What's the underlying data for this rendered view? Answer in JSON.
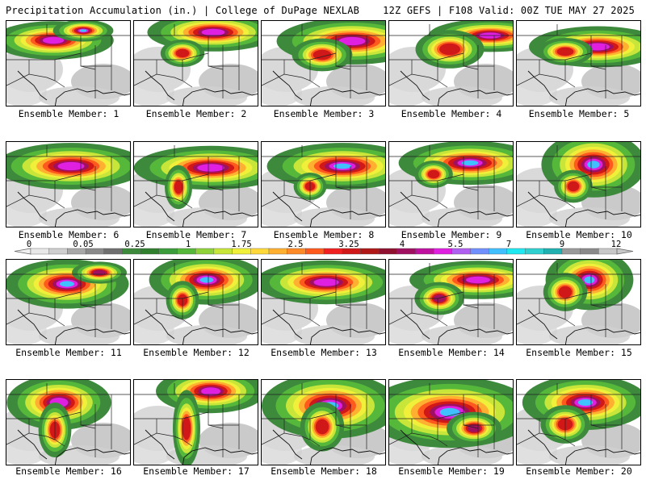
{
  "header": {
    "title": "Precipitation Accumulation (in.) | College of DuPage NEXLAB",
    "valid": "12Z GEFS | F108 Valid: 00Z TUE MAY 27 2025"
  },
  "members": [
    {
      "label": "Ensemble Member: 1"
    },
    {
      "label": "Ensemble Member: 2"
    },
    {
      "label": "Ensemble Member: 3"
    },
    {
      "label": "Ensemble Member: 4"
    },
    {
      "label": "Ensemble Member: 5"
    },
    {
      "label": "Ensemble Member: 6"
    },
    {
      "label": "Ensemble Member: 7"
    },
    {
      "label": "Ensemble Member: 8"
    },
    {
      "label": "Ensemble Member: 9"
    },
    {
      "label": "Ensemble Member: 10"
    },
    {
      "label": "Ensemble Member: 11"
    },
    {
      "label": "Ensemble Member: 12"
    },
    {
      "label": "Ensemble Member: 13"
    },
    {
      "label": "Ensemble Member: 14"
    },
    {
      "label": "Ensemble Member: 15"
    },
    {
      "label": "Ensemble Member: 16"
    },
    {
      "label": "Ensemble Member: 17"
    },
    {
      "label": "Ensemble Member: 18"
    },
    {
      "label": "Ensemble Member: 19"
    },
    {
      "label": "Ensemble Member: 20"
    }
  ],
  "colorbar": {
    "labels": [
      "0",
      "0.05",
      "0.25",
      "1",
      "1.75",
      "2.5",
      "3.25",
      "4",
      "5.5",
      "7",
      "9",
      "12"
    ],
    "colors": [
      "#e8e8e8",
      "#cfcfcf",
      "#a8a8a8",
      "#8a8a8a",
      "#6f6f6f",
      "#3d8a3d",
      "#2f7f2f",
      "#3a9c3a",
      "#56b83a",
      "#8fd23a",
      "#c8e63a",
      "#f0f03a",
      "#ffd93a",
      "#ffb030",
      "#ff8a28",
      "#ff5a1e",
      "#f02020",
      "#d01818",
      "#b01818",
      "#901030",
      "#a01060",
      "#c010a0",
      "#e020e0",
      "#b060f0",
      "#7090ff",
      "#40c0ff",
      "#20e8f0",
      "#30d0d0",
      "#20b0b0",
      "#9a9a9a",
      "#8a8a8a",
      "#c8c8c8"
    ]
  }
}
